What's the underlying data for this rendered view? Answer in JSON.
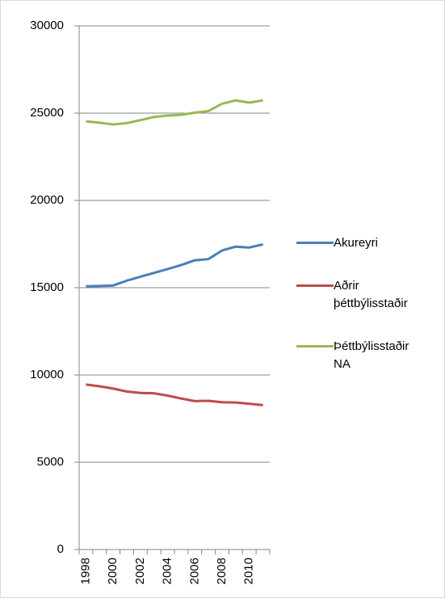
{
  "chart_data": {
    "type": "line",
    "categories": [
      "1998",
      null,
      "2000",
      null,
      "2002",
      null,
      "2004",
      null,
      "2006",
      null,
      "2008",
      null,
      "2010",
      null
    ],
    "series": [
      {
        "name": "Akureyri",
        "color": "#4a7ebb",
        "values": [
          15080,
          15100,
          15130,
          15400,
          15630,
          15850,
          16070,
          16300,
          16570,
          16640,
          17130,
          17350,
          17300,
          17480
        ]
      },
      {
        "name": "Aðrir þéttbýlisstaðir",
        "color": "#be4b48",
        "values": [
          9450,
          9350,
          9220,
          9050,
          8970,
          8950,
          8820,
          8650,
          8500,
          8520,
          8440,
          8420,
          8350,
          8270
        ]
      },
      {
        "name": "Þéttbýlisstaðir NA",
        "color": "#98b954",
        "values": [
          24530,
          24450,
          24350,
          24430,
          24600,
          24780,
          24860,
          24900,
          25030,
          25120,
          25540,
          25730,
          25600,
          25730
        ]
      }
    ],
    "ylim": [
      0,
      30000
    ],
    "yticks": [
      0,
      5000,
      10000,
      15000,
      20000,
      25000,
      30000
    ],
    "grid": true,
    "legend": "right"
  }
}
